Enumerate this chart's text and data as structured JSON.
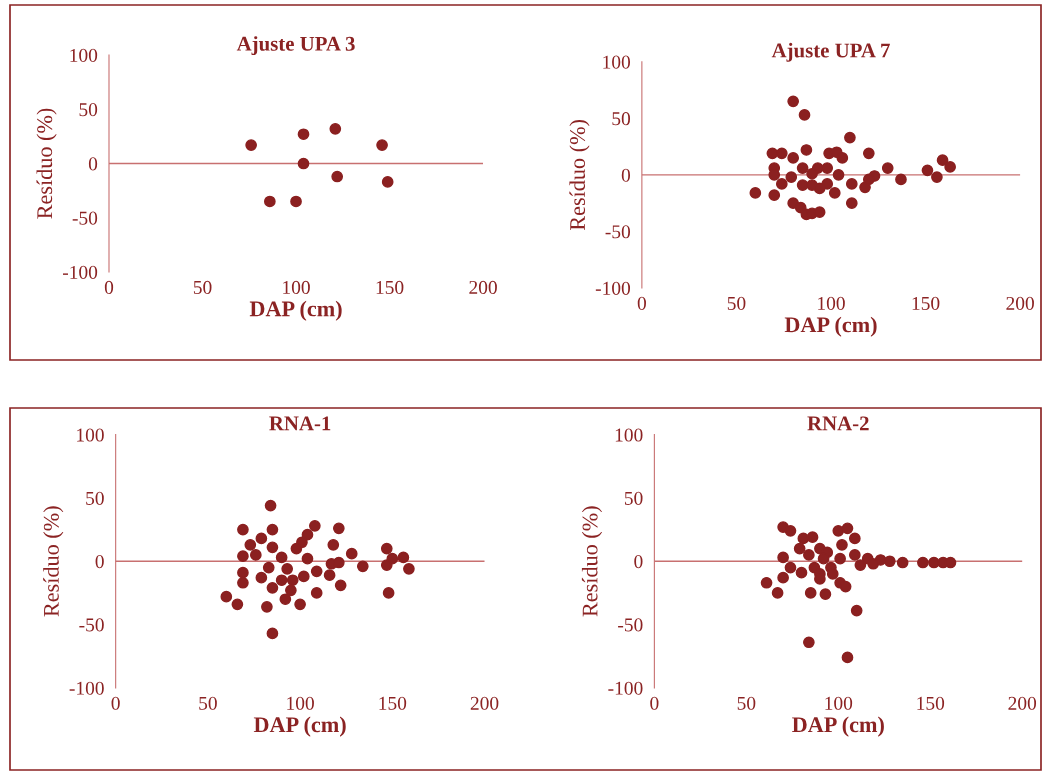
{
  "chart_data": [
    {
      "type": "scatter",
      "title": "Ajuste UPA 3",
      "xlabel": "DAP (cm)",
      "ylabel": "Resíduo (%)",
      "xlim": [
        0,
        200
      ],
      "ylim": [
        -100,
        100
      ],
      "xticks": [
        0,
        50,
        100,
        150,
        200
      ],
      "yticks": [
        -100,
        -50,
        0,
        50,
        100
      ],
      "grid": false,
      "marker": "circle",
      "ref_lines": [
        {
          "axis": "y",
          "value": 0,
          "color": "#c87070"
        }
      ],
      "series": [
        {
          "color": "#8b2020",
          "x": [
            76,
            86,
            100,
            104,
            104,
            121,
            122,
            146,
            149
          ],
          "values": [
            17,
            -35,
            -35,
            27,
            0,
            32,
            -12,
            17,
            -17
          ]
        }
      ]
    },
    {
      "type": "scatter",
      "title": "Ajuste UPA 7",
      "xlabel": "DAP (cm)",
      "ylabel": "Resíduo (%)",
      "xlim": [
        0,
        200
      ],
      "ylim": [
        -100,
        100
      ],
      "xticks": [
        0,
        50,
        100,
        150,
        200
      ],
      "yticks": [
        -100,
        -50,
        0,
        50,
        100
      ],
      "grid": false,
      "marker": "circle",
      "ref_lines": [
        {
          "axis": "y",
          "value": 0,
          "color": "#c87070"
        }
      ],
      "series": [
        {
          "color": "#8b2020",
          "x": [
            80,
            86,
            110,
            69,
            74,
            87,
            80,
            99,
            103,
            106,
            120,
            70,
            85,
            93,
            98,
            70,
            90,
            104,
            130,
            123,
            151,
            159,
            163,
            156,
            137,
            79,
            74,
            85,
            90,
            98,
            111,
            118,
            120,
            94,
            102,
            60,
            68,
            70,
            80,
            111,
            84,
            87,
            90,
            94
          ],
          "values": [
            65,
            53,
            33,
            19,
            19,
            22,
            15,
            19,
            20,
            15,
            19,
            6,
            6,
            6,
            6,
            0,
            1,
            0,
            6,
            -1,
            4,
            13,
            7,
            -2,
            -4,
            -2,
            -8,
            -9,
            -9,
            -8,
            -8,
            -11,
            -4,
            -12,
            -16,
            -16,
            null,
            -18,
            -25,
            -25,
            -29,
            -35,
            -34,
            -33
          ]
        }
      ]
    },
    {
      "type": "scatter",
      "title": "RNA-1",
      "xlabel": "DAP (cm)",
      "ylabel": "Resíduo (%)",
      "xlim": [
        0,
        200
      ],
      "ylim": [
        -100,
        100
      ],
      "xticks": [
        0,
        50,
        100,
        150,
        200
      ],
      "yticks": [
        -100,
        -50,
        0,
        50,
        100
      ],
      "grid": false,
      "marker": "circle",
      "ref_lines": [
        {
          "axis": "y",
          "value": 0,
          "color": "#c87070"
        }
      ],
      "series": [
        {
          "color": "#8b2020",
          "x": [
            84,
            69,
            85,
            108,
            121,
            79,
            104,
            101,
            73,
            85,
            98,
            118,
            128,
            147,
            69,
            76,
            90,
            104,
            117,
            121,
            134,
            147,
            150,
            156,
            159,
            83,
            93,
            109,
            116,
            69,
            69,
            79,
            90,
            96,
            102,
            95,
            85,
            122,
            109,
            148,
            60,
            66,
            82,
            92,
            100,
            85
          ],
          "values": [
            44,
            25,
            25,
            28,
            26,
            18,
            21,
            15,
            13,
            11,
            10,
            13,
            6,
            10,
            4,
            5,
            3,
            2,
            -2,
            -1,
            -4,
            -3,
            2,
            3,
            -6,
            -5,
            -6,
            -8,
            -11,
            -9,
            -17,
            -13,
            -15,
            -15,
            -12,
            -23,
            -21,
            -19,
            -25,
            -25,
            -28,
            -34,
            -36,
            -30,
            -34,
            -57
          ]
        }
      ]
    },
    {
      "type": "scatter",
      "title": "RNA-2",
      "xlabel": "DAP (cm)",
      "ylabel": "Resíduo (%)",
      "xlim": [
        0,
        200
      ],
      "ylim": [
        -100,
        100
      ],
      "xticks": [
        0,
        50,
        100,
        150,
        200
      ],
      "yticks": [
        -100,
        -50,
        0,
        50,
        100
      ],
      "grid": false,
      "marker": "circle",
      "ref_lines": [
        {
          "axis": "y",
          "value": 0,
          "color": "#c87070"
        }
      ],
      "series": [
        {
          "color": "#8b2020",
          "x": [
            70,
            74,
            81,
            86,
            100,
            105,
            109,
            102,
            79,
            90,
            94,
            70,
            84,
            92,
            101,
            109,
            116,
            123,
            128,
            135,
            112,
            119,
            146,
            152,
            157,
            161,
            74,
            87,
            96,
            80,
            90,
            97,
            70,
            90,
            61,
            101,
            104,
            67,
            85,
            93,
            110,
            84,
            105
          ],
          "values": [
            27,
            24,
            18,
            19,
            24,
            26,
            18,
            13,
            10,
            10,
            7,
            3,
            5,
            2,
            2,
            5,
            2,
            1,
            0,
            -1,
            -3,
            -2,
            -1,
            -1,
            -1,
            -1,
            -5,
            -5,
            -5,
            -9,
            -10,
            -10,
            -13,
            -14,
            -17,
            -17,
            -20,
            -25,
            -25,
            -26,
            -39,
            -64,
            -76
          ]
        }
      ]
    }
  ]
}
